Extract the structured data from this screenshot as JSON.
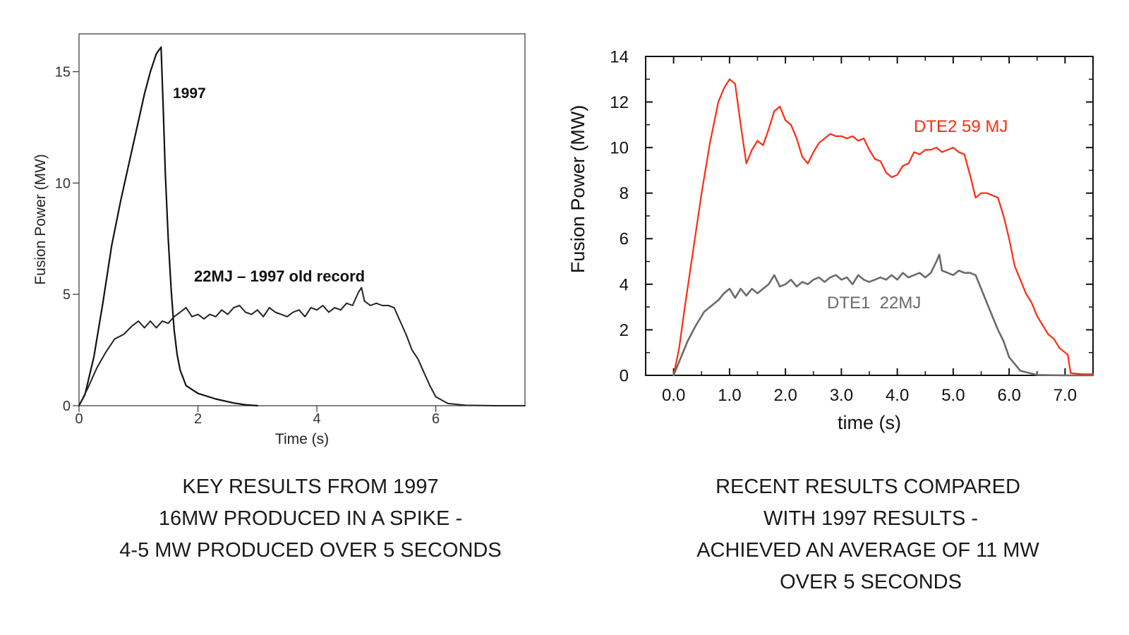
{
  "chart_data": [
    {
      "type": "line",
      "title": "",
      "xlabel": "Time (s)",
      "ylabel": "Fusion Power (MW)",
      "xlim": [
        0,
        7.5
      ],
      "ylim": [
        0,
        16.7
      ],
      "xticks": [
        0,
        2,
        4,
        6
      ],
      "yticks": [
        0,
        5,
        10,
        15
      ],
      "x_tick_labels": [
        "0",
        "2",
        "4",
        "6"
      ],
      "y_tick_labels": [
        "0",
        "5",
        "10",
        "15"
      ],
      "grid": false,
      "annotations": [
        "1997",
        "22MJ – 1997 old record"
      ],
      "series": [
        {
          "name": "1997",
          "color": "#111111",
          "x": [
            0,
            0.1,
            0.25,
            0.4,
            0.55,
            0.7,
            0.85,
            1.0,
            1.1,
            1.2,
            1.3,
            1.38,
            1.42,
            1.45,
            1.5,
            1.55,
            1.6,
            1.65,
            1.7,
            1.8,
            2.0,
            2.3,
            2.6,
            2.8,
            3.0
          ],
          "y": [
            0,
            0.5,
            2.2,
            4.6,
            7.2,
            9.2,
            11.0,
            12.8,
            14.0,
            15.0,
            15.8,
            16.1,
            13.0,
            10.5,
            7.5,
            5.2,
            3.4,
            2.3,
            1.6,
            0.9,
            0.55,
            0.3,
            0.12,
            0.04,
            0
          ]
        },
        {
          "name": "22MJ – 1997 old record",
          "color": "#222222",
          "x": [
            0,
            0.15,
            0.3,
            0.45,
            0.6,
            0.75,
            0.9,
            1.0,
            1.1,
            1.2,
            1.3,
            1.4,
            1.5,
            1.6,
            1.7,
            1.8,
            1.9,
            2.0,
            2.1,
            2.2,
            2.3,
            2.4,
            2.5,
            2.6,
            2.7,
            2.8,
            2.9,
            3.0,
            3.1,
            3.2,
            3.3,
            3.4,
            3.5,
            3.6,
            3.7,
            3.8,
            3.9,
            4.0,
            4.1,
            4.2,
            4.3,
            4.4,
            4.5,
            4.6,
            4.7,
            4.75,
            4.8,
            4.9,
            5.0,
            5.1,
            5.2,
            5.3,
            5.4,
            5.5,
            5.6,
            5.7,
            5.8,
            5.9,
            6.0,
            6.2,
            6.5,
            7.0,
            7.5
          ],
          "y": [
            0,
            0.8,
            1.7,
            2.4,
            3.0,
            3.2,
            3.6,
            3.8,
            3.5,
            3.8,
            3.5,
            3.8,
            3.7,
            4.0,
            4.2,
            4.4,
            4.0,
            4.1,
            3.9,
            4.1,
            4.0,
            4.3,
            4.1,
            4.4,
            4.5,
            4.2,
            4.1,
            4.3,
            4.0,
            4.4,
            4.2,
            4.1,
            4.0,
            4.2,
            4.3,
            4.0,
            4.4,
            4.3,
            4.5,
            4.2,
            4.4,
            4.3,
            4.6,
            4.5,
            5.1,
            5.3,
            4.7,
            4.5,
            4.6,
            4.5,
            4.5,
            4.4,
            3.8,
            3.2,
            2.5,
            2.1,
            1.5,
            0.9,
            0.4,
            0.1,
            0.02,
            0,
            0
          ]
        }
      ]
    },
    {
      "type": "line",
      "title": "",
      "xlabel": "time (s)",
      "ylabel": "Fusion Power (MW)",
      "xlim": [
        -0.5,
        7.5
      ],
      "ylim": [
        0,
        14
      ],
      "xticks": [
        0,
        1,
        2,
        3,
        4,
        5,
        6,
        7
      ],
      "yticks": [
        0,
        2,
        4,
        6,
        8,
        10,
        12,
        14
      ],
      "x_tick_labels": [
        "0.0",
        "1.0",
        "2.0",
        "3.0",
        "4.0",
        "5.0",
        "6.0",
        "7.0"
      ],
      "y_tick_labels": [
        "0",
        "2",
        "4",
        "6",
        "8",
        "10",
        "12",
        "14"
      ],
      "grid": false,
      "series": [
        {
          "name": "DTE2 59 MJ",
          "color": "#ff2a10",
          "x": [
            0,
            0.1,
            0.2,
            0.35,
            0.5,
            0.65,
            0.8,
            0.9,
            1.0,
            1.1,
            1.2,
            1.3,
            1.4,
            1.5,
            1.6,
            1.7,
            1.8,
            1.9,
            2.0,
            2.1,
            2.2,
            2.3,
            2.4,
            2.5,
            2.6,
            2.7,
            2.8,
            2.9,
            3.0,
            3.1,
            3.2,
            3.3,
            3.4,
            3.5,
            3.6,
            3.7,
            3.8,
            3.9,
            4.0,
            4.1,
            4.2,
            4.3,
            4.4,
            4.5,
            4.6,
            4.7,
            4.8,
            4.9,
            5.0,
            5.1,
            5.2,
            5.3,
            5.4,
            5.5,
            5.6,
            5.7,
            5.8,
            5.9,
            6.0,
            6.1,
            6.2,
            6.3,
            6.4,
            6.5,
            6.6,
            6.7,
            6.8,
            6.9,
            7.0,
            7.05,
            7.1,
            7.3,
            7.5
          ],
          "y": [
            0,
            1.2,
            3.0,
            5.5,
            8.0,
            10.2,
            12.0,
            12.6,
            13.0,
            12.8,
            11.0,
            9.3,
            9.9,
            10.3,
            10.1,
            10.8,
            11.6,
            11.8,
            11.2,
            11.0,
            10.4,
            9.6,
            9.3,
            9.8,
            10.2,
            10.4,
            10.6,
            10.5,
            10.5,
            10.4,
            10.5,
            10.3,
            10.4,
            9.9,
            9.5,
            9.4,
            8.9,
            8.7,
            8.8,
            9.2,
            9.3,
            9.8,
            9.7,
            9.9,
            9.9,
            10.0,
            9.8,
            9.9,
            10.0,
            9.8,
            9.7,
            8.8,
            7.8,
            8.0,
            8.0,
            7.9,
            7.8,
            7.0,
            6.0,
            4.8,
            4.2,
            3.6,
            3.2,
            2.6,
            2.2,
            1.8,
            1.6,
            1.2,
            1.0,
            0.9,
            0.1,
            0.05,
            0.05
          ]
        },
        {
          "name": "DTE1  22MJ",
          "color": "#6a6a6a",
          "x": [
            0,
            0.1,
            0.25,
            0.4,
            0.55,
            0.7,
            0.8,
            0.9,
            1.0,
            1.1,
            1.2,
            1.3,
            1.4,
            1.5,
            1.6,
            1.7,
            1.8,
            1.9,
            2.0,
            2.1,
            2.2,
            2.3,
            2.4,
            2.5,
            2.6,
            2.7,
            2.8,
            2.9,
            3.0,
            3.1,
            3.2,
            3.3,
            3.4,
            3.5,
            3.6,
            3.7,
            3.8,
            3.9,
            4.0,
            4.1,
            4.2,
            4.3,
            4.4,
            4.5,
            4.6,
            4.7,
            4.75,
            4.8,
            4.9,
            5.0,
            5.1,
            5.2,
            5.3,
            5.4,
            5.5,
            5.6,
            5.7,
            5.8,
            5.9,
            6.0,
            6.2,
            6.5,
            7.0,
            7.5
          ],
          "y": [
            0,
            0.6,
            1.5,
            2.2,
            2.8,
            3.1,
            3.3,
            3.6,
            3.8,
            3.4,
            3.8,
            3.5,
            3.8,
            3.6,
            3.8,
            4.0,
            4.4,
            3.9,
            4.0,
            4.2,
            3.9,
            4.1,
            4.0,
            4.2,
            4.3,
            4.1,
            4.3,
            4.4,
            4.2,
            4.3,
            4.0,
            4.4,
            4.2,
            4.1,
            4.2,
            4.3,
            4.2,
            4.4,
            4.2,
            4.5,
            4.3,
            4.4,
            4.5,
            4.3,
            4.5,
            5.0,
            5.3,
            4.6,
            4.5,
            4.4,
            4.6,
            4.5,
            4.5,
            4.4,
            3.8,
            3.2,
            2.6,
            2.0,
            1.5,
            0.8,
            0.2,
            0.02,
            0,
            0
          ]
        }
      ]
    }
  ],
  "captions": {
    "left": [
      "KEY RESULTS FROM 1997",
      "16MW PRODUCED IN A SPIKE -",
      "4-5 MW PRODUCED OVER 5 SECONDS"
    ],
    "right": [
      "RECENT RESULTS COMPARED",
      " WITH 1997 RESULTS -",
      "ACHIEVED AN AVERAGE OF 11 MW",
      " OVER 5 SECONDS"
    ]
  }
}
